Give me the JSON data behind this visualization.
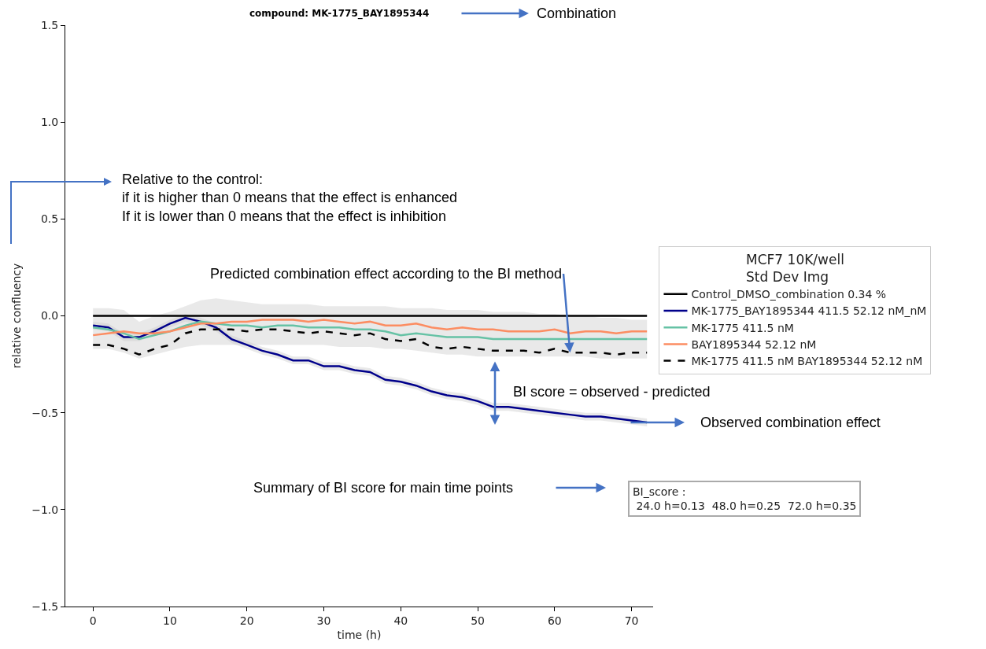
{
  "chart_data": {
    "type": "line",
    "title": "compound: MK-1775_BAY1895344",
    "xlabel": "time (h)",
    "ylabel": "relative confluency",
    "legend_title": "MCF7 10K/well\nStd Dev Img",
    "x": [
      0,
      2,
      4,
      6,
      8,
      10,
      12,
      14,
      16,
      18,
      20,
      22,
      24,
      26,
      28,
      30,
      32,
      34,
      36,
      38,
      40,
      42,
      44,
      46,
      48,
      50,
      52,
      54,
      56,
      58,
      60,
      62,
      64,
      66,
      68,
      70,
      72
    ],
    "series": [
      {
        "name": "Control_DMSO_combination 0.34 %",
        "color": "#000000",
        "x": [
          0,
          72
        ],
        "values": [
          0,
          0
        ]
      },
      {
        "name": "MK-1775_BAY1895344 411.5 52.12 nM_nM",
        "color": "#00008b",
        "values": [
          -0.05,
          -0.06,
          -0.11,
          -0.11,
          -0.08,
          -0.04,
          -0.01,
          -0.03,
          -0.06,
          -0.12,
          -0.15,
          -0.18,
          -0.2,
          -0.23,
          -0.23,
          -0.26,
          -0.26,
          -0.28,
          -0.29,
          -0.33,
          -0.34,
          -0.36,
          -0.39,
          -0.41,
          -0.42,
          -0.44,
          -0.47,
          -0.47,
          -0.48,
          -0.49,
          -0.5,
          -0.51,
          -0.52,
          -0.52,
          -0.53,
          -0.54,
          -0.55
        ],
        "upper": [
          -0.03,
          -0.04,
          -0.09,
          -0.09,
          -0.06,
          -0.02,
          0.01,
          -0.01,
          -0.04,
          -0.1,
          -0.13,
          -0.16,
          -0.18,
          -0.21,
          -0.21,
          -0.24,
          -0.24,
          -0.26,
          -0.27,
          -0.31,
          -0.32,
          -0.34,
          -0.37,
          -0.39,
          -0.4,
          -0.42,
          -0.45,
          -0.45,
          -0.46,
          -0.47,
          -0.48,
          -0.49,
          -0.5,
          -0.5,
          -0.51,
          -0.52,
          -0.53
        ],
        "lower": [
          -0.07,
          -0.08,
          -0.13,
          -0.13,
          -0.1,
          -0.06,
          -0.03,
          -0.05,
          -0.08,
          -0.14,
          -0.17,
          -0.2,
          -0.22,
          -0.25,
          -0.25,
          -0.28,
          -0.28,
          -0.3,
          -0.31,
          -0.35,
          -0.36,
          -0.38,
          -0.41,
          -0.43,
          -0.44,
          -0.46,
          -0.49,
          -0.49,
          -0.5,
          -0.51,
          -0.52,
          -0.53,
          -0.54,
          -0.54,
          -0.55,
          -0.56,
          -0.57
        ]
      },
      {
        "name": "MK-1775 411.5 nM",
        "color": "#66c2a5",
        "values": [
          -0.06,
          -0.07,
          -0.09,
          -0.12,
          -0.1,
          -0.08,
          -0.05,
          -0.03,
          -0.04,
          -0.05,
          -0.05,
          -0.06,
          -0.05,
          -0.05,
          -0.06,
          -0.06,
          -0.06,
          -0.07,
          -0.07,
          -0.08,
          -0.1,
          -0.09,
          -0.1,
          -0.11,
          -0.11,
          -0.11,
          -0.12,
          -0.12,
          -0.12,
          -0.12,
          -0.12,
          -0.12,
          -0.12,
          -0.12,
          -0.12,
          -0.12,
          -0.12
        ]
      },
      {
        "name": "BAY1895344 52.12 nM",
        "color": "#fc8d62",
        "values": [
          -0.1,
          -0.09,
          -0.08,
          -0.09,
          -0.09,
          -0.08,
          -0.06,
          -0.04,
          -0.04,
          -0.03,
          -0.03,
          -0.02,
          -0.02,
          -0.02,
          -0.03,
          -0.02,
          -0.03,
          -0.04,
          -0.03,
          -0.05,
          -0.05,
          -0.04,
          -0.06,
          -0.07,
          -0.06,
          -0.07,
          -0.07,
          -0.08,
          -0.08,
          -0.08,
          -0.07,
          -0.09,
          -0.08,
          -0.08,
          -0.09,
          -0.08,
          -0.08
        ]
      },
      {
        "name": "MK-1775 411.5 nM BAY1895344 52.12 nM",
        "color": "#000000",
        "line_style": "dashed",
        "values": [
          -0.15,
          -0.15,
          -0.17,
          -0.2,
          -0.17,
          -0.15,
          -0.09,
          -0.07,
          -0.07,
          -0.07,
          -0.08,
          -0.07,
          -0.07,
          -0.08,
          -0.09,
          -0.08,
          -0.09,
          -0.1,
          -0.09,
          -0.12,
          -0.13,
          -0.12,
          -0.16,
          -0.17,
          -0.16,
          -0.17,
          -0.18,
          -0.18,
          -0.18,
          -0.19,
          -0.17,
          -0.19,
          -0.19,
          -0.19,
          -0.2,
          -0.19,
          -0.19
        ],
        "upper": [
          0.04,
          0.04,
          0.03,
          -0.03,
          0.0,
          0.02,
          0.05,
          0.08,
          0.09,
          0.08,
          0.07,
          0.06,
          0.06,
          0.06,
          0.06,
          0.05,
          0.05,
          0.05,
          0.05,
          0.05,
          0.04,
          0.04,
          0.04,
          0.03,
          0.03,
          0.03,
          0.02,
          0.02,
          0.02,
          0.01,
          0.01,
          0.0,
          0.0,
          -0.01,
          -0.01,
          -0.02,
          -0.02
        ],
        "lower": [
          -0.17,
          -0.17,
          -0.19,
          -0.22,
          -0.2,
          -0.18,
          -0.16,
          -0.15,
          -0.15,
          -0.15,
          -0.15,
          -0.15,
          -0.15,
          -0.15,
          -0.15,
          -0.15,
          -0.16,
          -0.16,
          -0.16,
          -0.17,
          -0.17,
          -0.18,
          -0.19,
          -0.2,
          -0.2,
          -0.21,
          -0.21,
          -0.21,
          -0.21,
          -0.21,
          -0.21,
          -0.21,
          -0.21,
          -0.22,
          -0.22,
          -0.22,
          -0.22
        ]
      }
    ],
    "xlim": [
      -3.6,
      72.8
    ],
    "xticks": [
      0,
      10,
      20,
      30,
      40,
      50,
      60,
      70
    ],
    "ylim": [
      -1.5,
      1.5
    ],
    "yticks": [
      {
        "value": -1.5,
        "label": "−1.5"
      },
      {
        "value": -1,
        "label": "−1.0"
      },
      {
        "value": -0.5,
        "label": "−0.5"
      },
      {
        "value": 0,
        "label": "0.0"
      },
      0.5,
      {
        "value": 1,
        "label": "1.0"
      },
      1.5
    ],
    "legend": "right",
    "grid": false,
    "annotations": [
      "Combination",
      "Relative to the control:\nif it is higher than 0 means that the effect is enhanced\nIf it is lower than 0 means that the effect is inhibition",
      {
        "text": "Predicted combination effect according to the BI method",
        "x": 62,
        "y": -0.19
      },
      "BI score = observed - predicted",
      "Observed combination effect",
      "Summary of BI score for main time points",
      "BI_score :\n 24.0 h=0.13  48.0 h=0.25  72.0 h=0.35"
    ]
  }
}
